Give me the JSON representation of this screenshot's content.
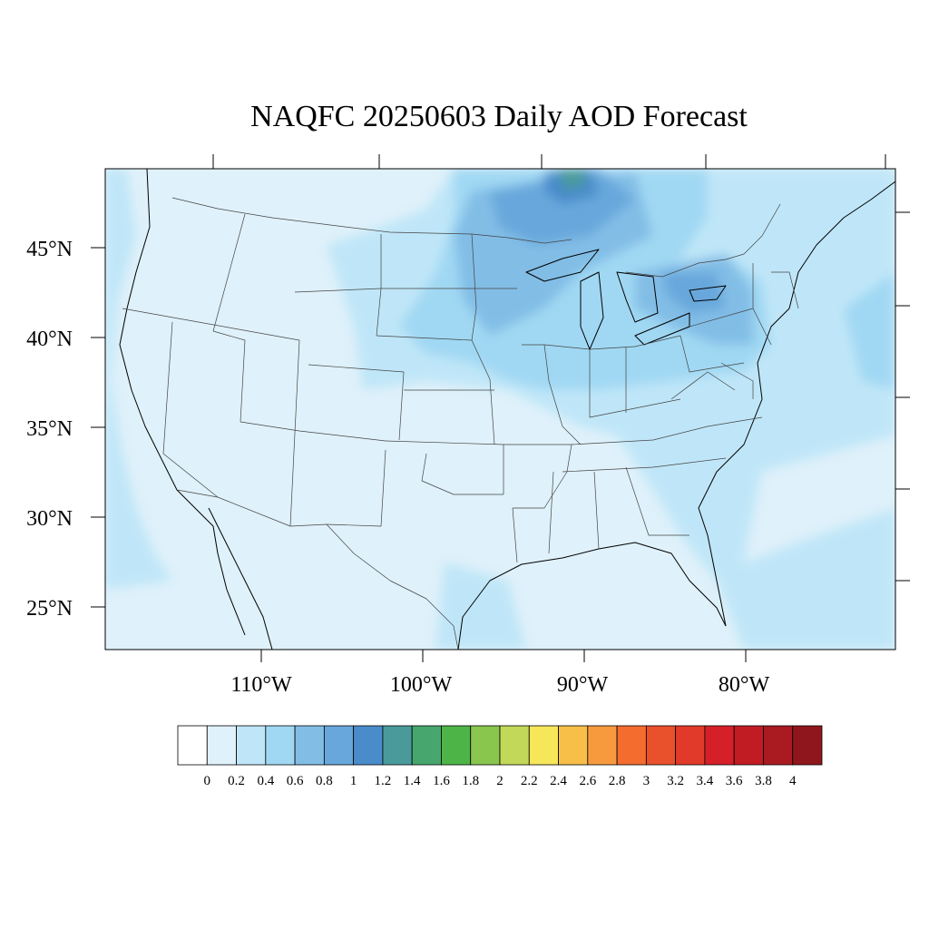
{
  "title": "NAQFC 20250603 Daily AOD Forecast",
  "lat_labels": [
    "45°N",
    "40°N",
    "35°N",
    "30°N",
    "25°N"
  ],
  "lon_labels": [
    "110°W",
    "100°W",
    "90°W",
    "80°W"
  ],
  "colorbar": {
    "colors": [
      "#ffffff",
      "#dff1fa",
      "#bfe6f8",
      "#a0d8f3",
      "#82bde6",
      "#68a7dc",
      "#4a8bca",
      "#4a9a9c",
      "#46a66e",
      "#4db548",
      "#88c64e",
      "#c2d858",
      "#f6e65a",
      "#f8bf48",
      "#f79a3e",
      "#f46c2e",
      "#e9502c",
      "#e13a2a",
      "#d52029",
      "#c11b24",
      "#a91a21",
      "#8f161c"
    ],
    "labels": [
      "0",
      "0.2",
      "0.4",
      "0.6",
      "0.8",
      "1",
      "1.2",
      "1.4",
      "1.6",
      "1.8",
      "2",
      "2.2",
      "2.4",
      "2.6",
      "2.8",
      "3",
      "3.2",
      "3.4",
      "3.6",
      "3.8",
      "4"
    ]
  }
}
